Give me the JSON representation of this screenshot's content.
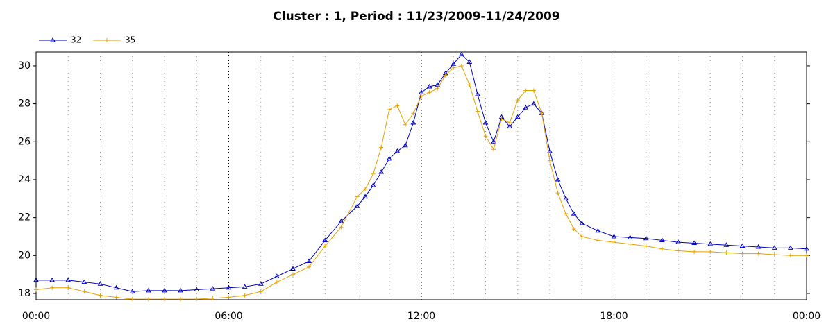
{
  "chart_data": {
    "type": "line",
    "title": "Cluster : 1, Period : 11/23/2009-11/24/2009",
    "x": [
      0,
      0.5,
      1,
      1.5,
      2,
      2.5,
      3,
      3.5,
      4,
      4.5,
      5,
      5.5,
      6,
      6.5,
      7,
      7.5,
      8,
      8.5,
      9,
      9.5,
      10,
      10.25,
      10.5,
      10.75,
      11,
      11.25,
      11.5,
      11.75,
      12,
      12.25,
      12.5,
      12.75,
      13,
      13.25,
      13.5,
      13.75,
      14,
      14.25,
      14.5,
      14.75,
      15,
      15.25,
      15.5,
      15.75,
      16,
      16.25,
      16.5,
      16.75,
      17,
      17.5,
      18,
      18.5,
      19,
      19.5,
      20,
      20.5,
      21,
      21.5,
      22,
      22.5,
      23,
      23.5,
      24
    ],
    "series": [
      {
        "name": "32",
        "color": "#0000c0",
        "marker": "triangle",
        "values": [
          18.7,
          18.7,
          18.7,
          18.6,
          18.5,
          18.3,
          18.1,
          18.15,
          18.15,
          18.15,
          18.2,
          18.25,
          18.3,
          18.35,
          18.5,
          18.9,
          19.3,
          19.7,
          20.8,
          21.8,
          22.6,
          23.1,
          23.7,
          24.4,
          25.1,
          25.5,
          25.8,
          27.0,
          28.6,
          28.9,
          29.0,
          29.6,
          30.1,
          30.6,
          30.2,
          28.5,
          27.0,
          26.0,
          27.3,
          26.8,
          27.3,
          27.8,
          28.0,
          27.5,
          25.5,
          24.0,
          23.0,
          22.2,
          21.7,
          21.3,
          21.0,
          20.95,
          20.9,
          20.8,
          20.7,
          20.65,
          20.6,
          20.55,
          20.5,
          20.45,
          20.4,
          20.4,
          20.35
        ]
      },
      {
        "name": "35",
        "color": "#e8a000",
        "marker": "plus",
        "values": [
          18.2,
          18.3,
          18.3,
          18.1,
          17.9,
          17.8,
          17.7,
          17.7,
          17.7,
          17.7,
          17.7,
          17.75,
          17.8,
          17.9,
          18.1,
          18.6,
          19.0,
          19.4,
          20.5,
          21.5,
          23.1,
          23.5,
          24.3,
          25.7,
          27.7,
          27.9,
          26.9,
          27.5,
          28.4,
          28.6,
          28.8,
          29.5,
          29.9,
          30.0,
          29.0,
          27.6,
          26.3,
          25.6,
          27.2,
          27.0,
          28.2,
          28.7,
          28.7,
          27.5,
          25.0,
          23.3,
          22.2,
          21.4,
          21.0,
          20.8,
          20.7,
          20.6,
          20.5,
          20.35,
          20.25,
          20.2,
          20.2,
          20.15,
          20.1,
          20.1,
          20.05,
          20.0,
          20.0
        ]
      }
    ],
    "xlim": [
      0,
      24
    ],
    "xticks": [
      {
        "value": 0,
        "label": "00:00"
      },
      {
        "value": 6,
        "label": "06:00"
      },
      {
        "value": 12,
        "label": "12:00"
      },
      {
        "value": 18,
        "label": "18:00"
      },
      {
        "value": 24,
        "label": "00:00"
      }
    ],
    "xminorticks": [
      1,
      2,
      3,
      4,
      5,
      7,
      8,
      9,
      10,
      11,
      13,
      14,
      15,
      16,
      17,
      19,
      20,
      21,
      22,
      23
    ],
    "ylim": [
      17.67,
      30.73
    ],
    "yticks": [
      18,
      20,
      22,
      24,
      26,
      28,
      30
    ],
    "legend": "top-left"
  }
}
